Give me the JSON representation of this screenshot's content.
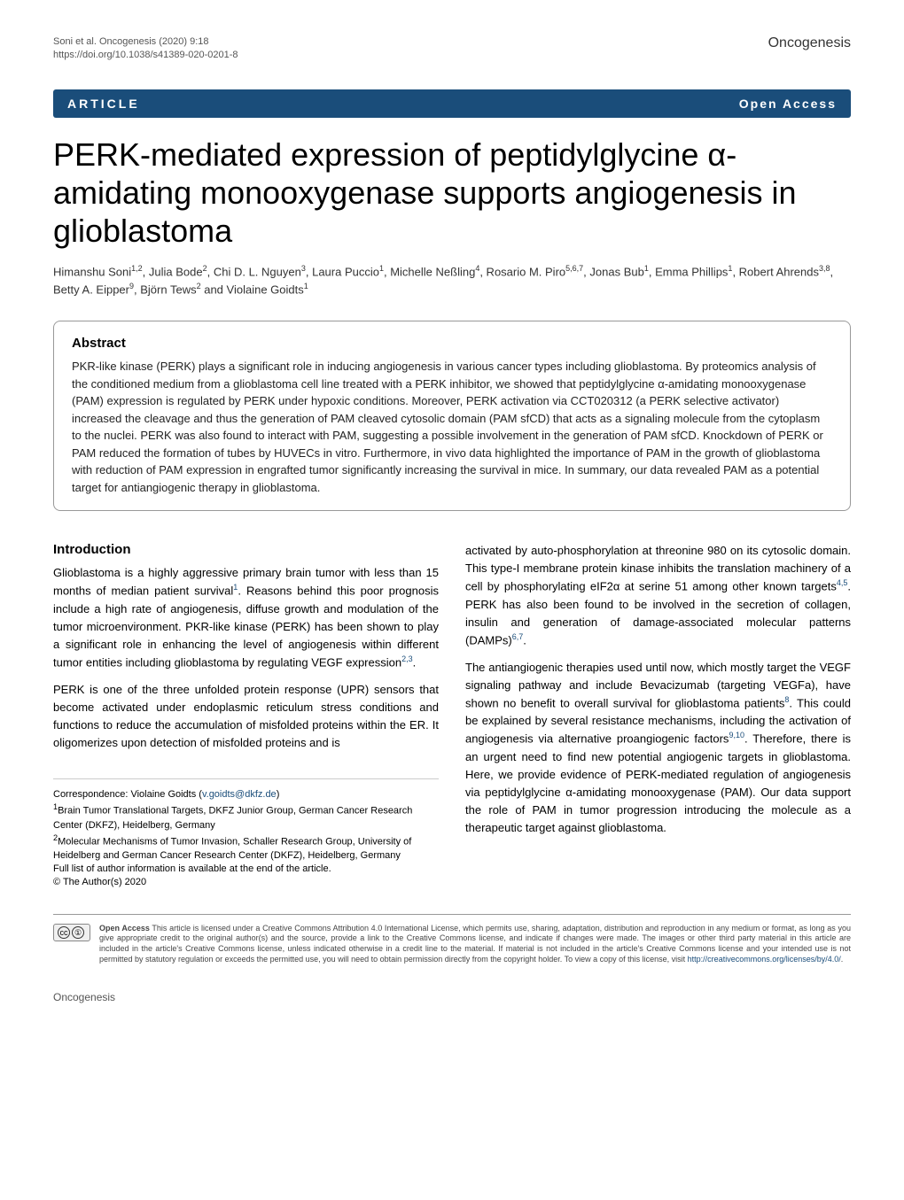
{
  "header": {
    "citation_line1": "Soni et al. Oncogenesis           (2020) 9:18",
    "citation_line2": "https://doi.org/10.1038/s41389-020-0201-8",
    "journal": "Oncogenesis"
  },
  "banner": {
    "article_type": "ARTICLE",
    "open_access": "Open Access"
  },
  "title": "PERK-mediated expression of peptidylglycine α-amidating monooxygenase supports angiogenesis in glioblastoma",
  "authors_html": "Himanshu Soni<sup>1,2</sup>, Julia Bode<sup>2</sup>, Chi D. L. Nguyen<sup>3</sup>, Laura Puccio<sup>1</sup>, Michelle Neßling<sup>4</sup>, Rosario M. Piro<sup>5,6,7</sup>, Jonas Bub<sup>1</sup>, Emma Phillips<sup>1</sup>, Robert Ahrends<sup>3,8</sup>, Betty A. Eipper<sup>9</sup>, Björn Tews<sup>2</sup> and Violaine Goidts<sup>1</sup>",
  "abstract": {
    "heading": "Abstract",
    "text": "PKR-like kinase (PERK) plays a significant role in inducing angiogenesis in various cancer types including glioblastoma. By proteomics analysis of the conditioned medium from a glioblastoma cell line treated with a PERK inhibitor, we showed that peptidylglycine α-amidating monooxygenase (PAM) expression is regulated by PERK under hypoxic conditions. Moreover, PERK activation via CCT020312 (a PERK selective activator) increased the cleavage and thus the generation of PAM cleaved cytosolic domain (PAM sfCD) that acts as a signaling molecule from the cytoplasm to the nuclei. PERK was also found to interact with PAM, suggesting a possible involvement in the generation of PAM sfCD. Knockdown of PERK or PAM reduced the formation of tubes by HUVECs in vitro. Furthermore, in vivo data highlighted the importance of PAM in the growth of glioblastoma with reduction of PAM expression in engrafted tumor significantly increasing the survival in mice. In summary, our data revealed PAM as a potential target for antiangiogenic therapy in glioblastoma."
  },
  "introduction": {
    "heading": "Introduction",
    "para1": "Glioblastoma is a highly aggressive primary brain tumor with less than 15 months of median patient survival<sup>1</sup>. Reasons behind this poor prognosis include a high rate of angiogenesis, diffuse growth and modulation of the tumor microenvironment. PKR-like kinase (PERK) has been shown to play a significant role in enhancing the level of angiogenesis within different tumor entities including glioblastoma by regulating VEGF expression<sup>2,3</sup>.",
    "para2": "PERK is one of the three unfolded protein response (UPR) sensors that become activated under endoplasmic reticulum stress conditions and functions to reduce the accumulation of misfolded proteins within the ER. It oligomerizes upon detection of misfolded proteins and is",
    "para3": "activated by auto-phosphorylation at threonine 980 on its cytosolic domain. This type-I membrane protein kinase inhibits the translation machinery of a cell by phosphorylating eIF2α at serine 51 among other known targets<sup>4,5</sup>. PERK has also been found to be involved in the secretion of collagen, insulin and generation of damage-associated molecular patterns (DAMPs)<sup>6,7</sup>.",
    "para4": "The antiangiogenic therapies used until now, which mostly target the VEGF signaling pathway and include Bevacizumab (targeting VEGFa), have shown no benefit to overall survival for glioblastoma patients<sup>8</sup>. This could be explained by several resistance mechanisms, including the activation of angiogenesis via alternative proangiogenic factors<sup>9,10</sup>. Therefore, there is an urgent need to find new potential angiogenic targets in glioblastoma. Here, we provide evidence of PERK-mediated regulation of angiogenesis via peptidylglycine α-amidating monooxygenase (PAM). Our data support the role of PAM in tumor progression introducing the molecule as a therapeutic target against glioblastoma."
  },
  "correspondence": {
    "line1": "Correspondence: Violaine Goidts (v.goidts@dkfz.de)",
    "email": "v.goidts@dkfz.de",
    "affil1": "<sup>1</sup>Brain Tumor Translational Targets, DKFZ Junior Group, German Cancer Research Center (DKFZ), Heidelberg, Germany",
    "affil2": "<sup>2</sup>Molecular Mechanisms of Tumor Invasion, Schaller Research Group, University of Heidelberg and German Cancer Research Center (DKFZ), Heidelberg, Germany",
    "full_list": "Full list of author information is available at the end of the article."
  },
  "license": {
    "copyright": "© The Author(s) 2020",
    "text": "<b>Open Access</b> This article is licensed under a Creative Commons Attribution 4.0 International License, which permits use, sharing, adaptation, distribution and reproduction in any medium or format, as long as you give appropriate credit to the original author(s) and the source, provide a link to the Creative Commons license, and indicate if changes were made. The images or other third party material in this article are included in the article's Creative Commons license, unless indicated otherwise in a credit line to the material. If material is not included in the article's Creative Commons license and your intended use is not permitted by statutory regulation or exceeds the permitted use, you will need to obtain permission directly from the copyright holder. To view a copy of this license, visit <a href='#'>http://creativecommons.org/licenses/by/4.0/</a>."
  },
  "footer": {
    "journal": "Oncogenesis"
  },
  "styling": {
    "banner_bg": "#1a4d7a",
    "banner_text": "#ffffff",
    "link_color": "#1a4d7a",
    "body_bg": "#ffffff",
    "title_fontsize": 36,
    "body_fontsize": 13,
    "abstract_border": "#999999"
  }
}
